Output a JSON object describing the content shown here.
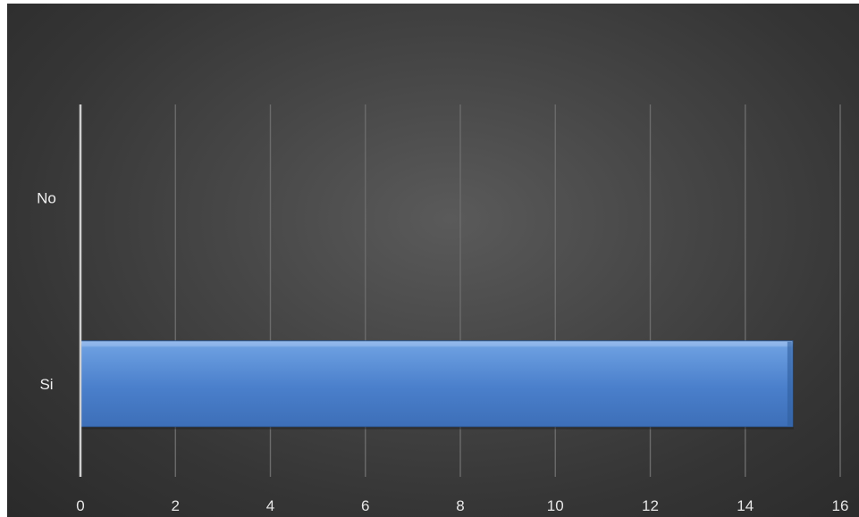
{
  "chart_data": {
    "type": "bar",
    "orientation": "horizontal",
    "categories": [
      "Si",
      "No"
    ],
    "values": [
      15,
      0
    ],
    "title": "",
    "xlabel": "",
    "ylabel": "",
    "xlim": [
      0,
      16
    ],
    "xticks": [
      "0",
      "2",
      "4",
      "6",
      "8",
      "10",
      "12",
      "14",
      "16"
    ],
    "grid": "vertical",
    "legend": "none",
    "colors": {
      "background": "#3f3f3f",
      "bar": "#4a7fcb",
      "bar_highlight": "#8fb6ea",
      "gridline": "#6b6b6b",
      "axis": "#cfcfcf",
      "text": "#e6e6e6"
    }
  }
}
